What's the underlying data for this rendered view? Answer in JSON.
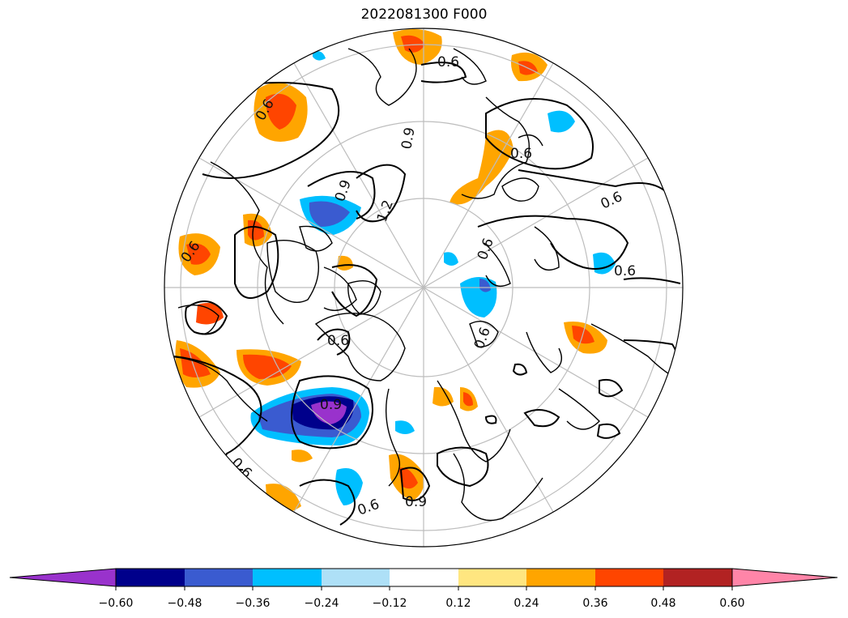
{
  "title": "2022081300 F000",
  "colorbar": {
    "colors": [
      "#9932CC",
      "#00008B",
      "#3A5BD0",
      "#00BFFF",
      "#AEE0F7",
      "#FFFFFF",
      "#FFE680",
      "#FFA500",
      "#FF4500",
      "#B22222",
      "#FF85A8"
    ],
    "tick_labels": [
      "−0.60",
      "−0.48",
      "−0.36",
      "−0.24",
      "−0.12",
      "0.12",
      "0.24",
      "0.36",
      "0.48",
      "0.60"
    ]
  },
  "contour_labels": [
    "0.6",
    "0.9",
    "0.6",
    "0.6",
    "0.9",
    "1.2",
    "0.6",
    "0.6",
    "0.6",
    "0.6",
    "0.6",
    "0.9",
    "0.6",
    "0.9",
    "0.6",
    "0.6"
  ]
}
